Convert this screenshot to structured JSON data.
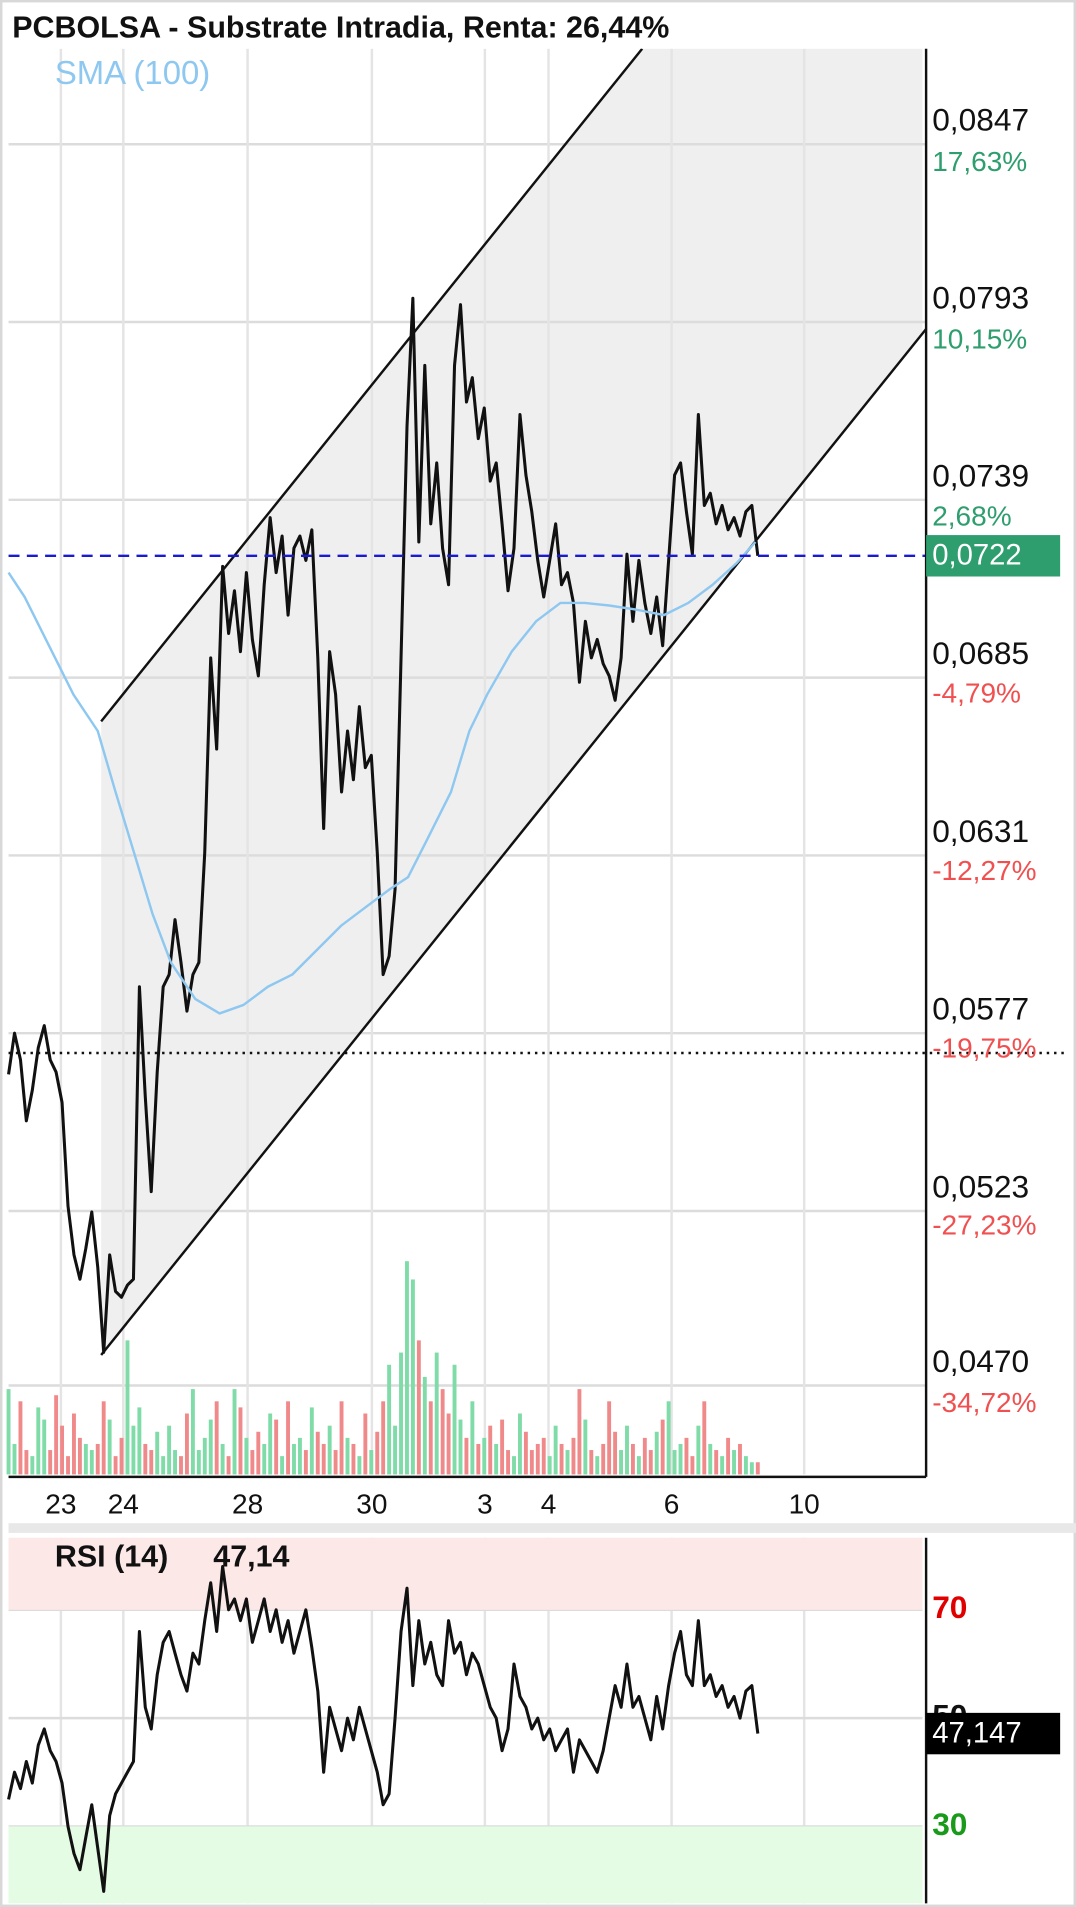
{
  "chart_data": [
    {
      "type": "line",
      "title": "PCBOLSA - Substrate Intradia, Renta: 26,44%",
      "xlim": [
        0,
        154.3
      ],
      "xticks": [
        {
          "value": 8.8,
          "label": "23"
        },
        {
          "value": 19.3,
          "label": "24"
        },
        {
          "value": 40.2,
          "label": "28"
        },
        {
          "value": 61.1,
          "label": "30"
        },
        {
          "value": 80.1,
          "label": "3"
        },
        {
          "value": 90.8,
          "label": "4"
        },
        {
          "value": 111.5,
          "label": "6"
        },
        {
          "value": 133.8,
          "label": "10"
        }
      ],
      "ylim": [
        0.0443,
        0.0876
      ],
      "yticks": [
        {
          "value": 0.0847,
          "label": "0,0847"
        },
        {
          "value": 0.0793,
          "label": "0,0793"
        },
        {
          "value": 0.0739,
          "label": "0,0739"
        },
        {
          "value": 0.0685,
          "label": "0,0685"
        },
        {
          "value": 0.0631,
          "label": "0,0631"
        },
        {
          "value": 0.0577,
          "label": "0,0577"
        },
        {
          "value": 0.0523,
          "label": "0,0523"
        },
        {
          "value": 0.047,
          "label": "0,0470"
        }
      ],
      "y2lim": [
        -38.48,
        21.66
      ],
      "y2ticks": [
        {
          "value": 17.63,
          "label": "17,63%"
        },
        {
          "value": 10.15,
          "label": "10,15%"
        },
        {
          "value": 2.68,
          "label": "2,68%"
        },
        {
          "value": -4.79,
          "label": "-4,79%"
        },
        {
          "value": -12.27,
          "label": "-12,27%"
        },
        {
          "value": -19.75,
          "label": "-19,75%"
        },
        {
          "value": -27.23,
          "label": "-27,23%"
        },
        {
          "value": -34.72,
          "label": "-34,72%"
        }
      ],
      "y2tick_colors": {
        "positive": "#2e9e6e",
        "negative": "#f05050"
      },
      "grid": true,
      "series": [
        {
          "color": "#111111",
          "values": [
            0.05645,
            0.0577,
            0.05689,
            0.05504,
            0.05597,
            0.05726,
            0.05793,
            0.05689,
            0.05652,
            0.0556,
            0.05245,
            0.05097,
            0.05023,
            0.05116,
            0.05227,
            0.0506,
            0.04801,
            0.05097,
            0.04986,
            0.04968,
            0.05005,
            0.05023,
            0.05911,
            0.05578,
            0.05289,
            0.05652,
            0.05911,
            0.05948,
            0.06115,
            0.05985,
            0.05837,
            0.05948,
            0.05985,
            0.06318,
            0.0691,
            0.06633,
            0.07188,
            0.06984,
            0.07114,
            0.06929,
            0.07169,
            0.06966,
            0.06855,
            0.07132,
            0.07336,
            0.07169,
            0.0728,
            0.0704,
            0.07243,
            0.0728,
            0.07206,
            0.07299,
            0.0691,
            0.06392,
            0.06929,
            0.06799,
            0.06503,
            0.06688,
            0.0654,
            0.06762,
            0.06577,
            0.06614,
            0.06318,
            0.05948,
            0.06004,
            0.06207,
            0.0691,
            0.07613,
            0.08002,
            0.07262,
            0.07798,
            0.07317,
            0.07502,
            0.07243,
            0.07132,
            0.07798,
            0.07983,
            0.07687,
            0.07761,
            0.07576,
            0.07669,
            0.07447,
            0.07502,
            0.07317,
            0.07114,
            0.07243,
            0.07649,
            0.07465,
            0.07354,
            0.07206,
            0.07095,
            0.07206,
            0.07317,
            0.07132,
            0.07169,
            0.07077,
            0.06836,
            0.07021,
            0.0691,
            0.06966,
            0.06892,
            0.06855,
            0.06781,
            0.0691,
            0.07225,
            0.07021,
            0.07206,
            0.07077,
            0.06984,
            0.07095,
            0.06947,
            0.07206,
            0.07465,
            0.07502,
            0.07354,
            0.07225,
            0.07649,
            0.07373,
            0.0741,
            0.07317,
            0.07373,
            0.07299,
            0.07336,
            0.0728,
            0.07354,
            0.07373,
            0.0722
          ]
        },
        {
          "name": "SMA (100)",
          "color": "#8ec8f0",
          "x": [
            0,
            2.7,
            6.8,
            10.9,
            15,
            18,
            21.1,
            24.2,
            27.3,
            31.4,
            35.5,
            39.5,
            43.6,
            47.7,
            51.8,
            55.9,
            60,
            64.1,
            67.2,
            70.3,
            74.4,
            77.5,
            80.5,
            84.6,
            88.7,
            92.8,
            96.9,
            101,
            105.1,
            110.2,
            114.3,
            118.4,
            122.5,
            125.6
          ],
          "values": [
            0.07169,
            0.07095,
            0.06947,
            0.06799,
            0.06688,
            0.06503,
            0.06318,
            0.06133,
            0.05985,
            0.05874,
            0.0583,
            0.05856,
            0.05911,
            0.05948,
            0.06022,
            0.06096,
            0.06152,
            0.06207,
            0.06244,
            0.06355,
            0.06503,
            0.06688,
            0.06799,
            0.06929,
            0.07021,
            0.07077,
            0.07077,
            0.07069,
            0.07058,
            0.0704,
            0.07077,
            0.07132,
            0.07199,
            0.07262
          ]
        }
      ],
      "volume": {
        "color_up": "#7fdba7",
        "color_down": "#f08a8a",
        "ylim": [
          0,
          180
        ],
        "values": [
          70,
          25,
          60,
          20,
          15,
          55,
          45,
          20,
          65,
          40,
          15,
          50,
          30,
          25,
          20,
          25,
          60,
          45,
          15,
          30,
          110,
          40,
          55,
          25,
          20,
          35,
          15,
          40,
          20,
          15,
          50,
          70,
          20,
          30,
          45,
          60,
          25,
          15,
          70,
          55,
          30,
          20,
          35,
          25,
          50,
          45,
          15,
          60,
          25,
          30,
          20,
          55,
          35,
          25,
          40,
          20,
          60,
          30,
          25,
          15,
          50,
          20,
          35,
          60,
          90,
          40,
          100,
          175,
          160,
          110,
          80,
          60,
          100,
          70,
          50,
          90,
          45,
          30,
          60,
          25,
          30,
          40,
          25,
          45,
          20,
          15,
          50,
          35,
          20,
          25,
          30,
          15,
          40,
          25,
          20,
          30,
          70,
          45,
          20,
          15,
          25,
          60,
          35,
          20,
          40,
          25,
          15,
          30,
          20,
          35,
          45,
          60,
          20,
          25,
          30,
          15,
          40,
          60,
          25,
          20,
          15,
          30,
          20,
          25,
          15,
          10,
          10
        ]
      },
      "last_price": {
        "value": 0.0722,
        "label": "0,0722",
        "line_color": "#1a1ad0",
        "box_color": "#2e9e6e"
      },
      "reference_line": 0.0571
    },
    {
      "type": "line",
      "title": "RSI (14)",
      "current_value": {
        "value": 47.14,
        "label": "47,14"
      },
      "last_label": {
        "value": 47.147,
        "label": "47,147"
      },
      "xlim": [
        0,
        154.3
      ],
      "ylim": [
        15.8,
        83.3
      ],
      "yticks": [
        70,
        50,
        30
      ],
      "ytick_colors": [
        "#e00000",
        "#111111",
        "#1a9a1a"
      ],
      "zones": [
        {
          "from": 70,
          "to": 83.3,
          "color": "#fde8e8"
        },
        {
          "from": 15.8,
          "to": 30,
          "color": "#e4fbe4"
        }
      ],
      "series": [
        {
          "color": "#111111",
          "values": [
            35,
            40,
            37,
            42,
            38,
            45,
            48,
            44,
            42,
            38,
            30,
            25,
            22,
            28,
            34,
            26,
            18,
            32,
            36,
            38,
            40,
            42,
            66,
            52,
            48,
            58,
            64,
            66,
            62,
            58,
            55,
            62,
            60,
            68,
            75,
            66,
            78,
            70,
            72,
            68,
            72,
            64,
            68,
            72,
            66,
            70,
            64,
            68,
            62,
            66,
            70,
            63,
            55,
            40,
            52,
            48,
            44,
            50,
            46,
            52,
            48,
            44,
            40,
            34,
            36,
            50,
            66,
            74,
            56,
            68,
            60,
            64,
            58,
            56,
            68,
            62,
            64,
            58,
            62,
            60,
            56,
            52,
            50,
            44,
            48,
            60,
            54,
            52,
            48,
            50,
            46,
            48,
            44,
            46,
            48,
            40,
            46,
            44,
            42,
            40,
            44,
            50,
            56,
            52,
            60,
            52,
            54,
            50,
            46,
            54,
            48,
            56,
            62,
            66,
            58,
            56,
            68,
            56,
            58,
            54,
            56,
            52,
            54,
            50,
            55,
            56,
            47.147
          ]
        }
      ]
    }
  ]
}
